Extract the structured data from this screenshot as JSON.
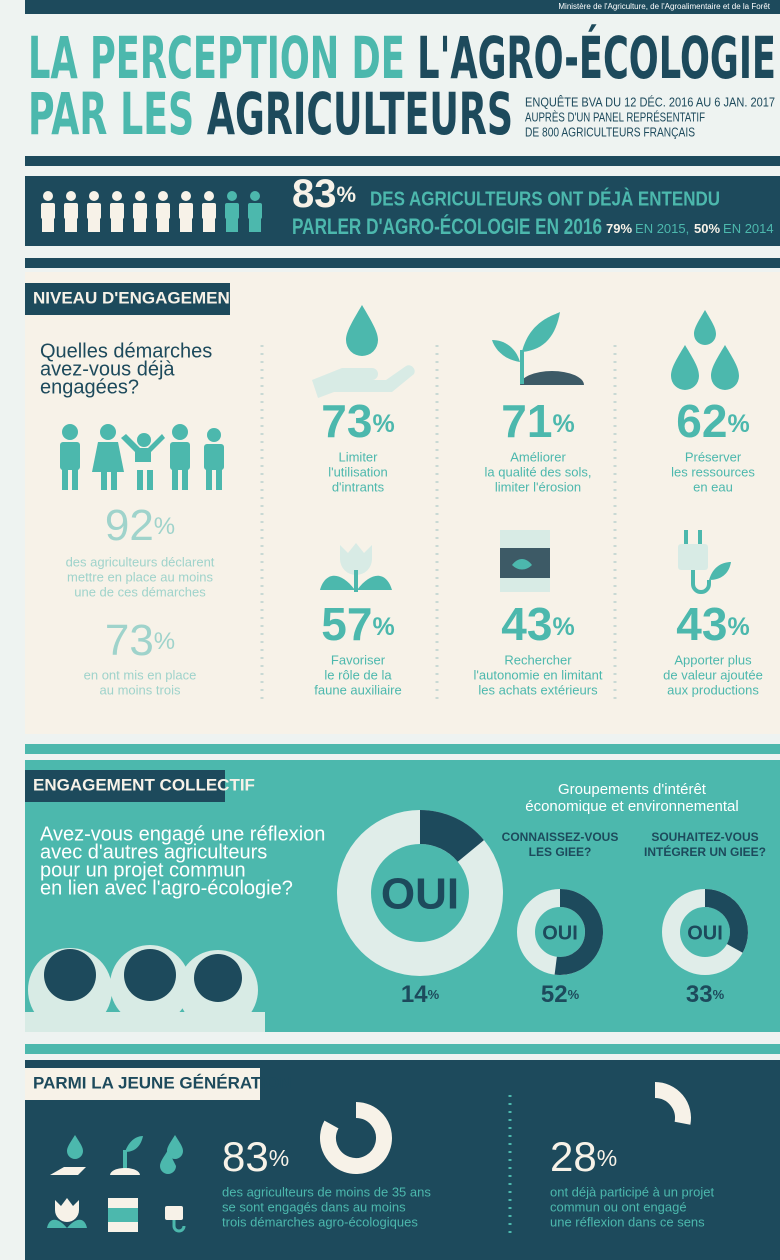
{
  "unit": "%",
  "header": {
    "source": "Ministère de l'Agriculture, de l'Agroalimentaire et de la Forêt",
    "title_line1": [
      "LA PERCEPTION DE ",
      "L'AGRO-ÉCOLOGIE"
    ],
    "title_line2": [
      "PAR LES ",
      "AGRICULTEURS"
    ],
    "survey": [
      "ENQUÊTE BVA DU 12 DÉC. 2016 AU 6 JAN. 2017",
      "AUPRÈS D'UN PANEL REPRÉSENTATIF",
      "DE 800 AGRICULTEURS FRANÇAIS"
    ]
  },
  "awareness": {
    "value": 83,
    "text_line1": "DES AGRICULTEURS ONT DÉJÀ ENTENDU",
    "text_line2": "PARLER D'AGRO-ÉCOLOGIE EN 2016",
    "history": [
      {
        "value": 79,
        "text": "EN 2015,"
      },
      {
        "value": 50,
        "text": "EN 2014"
      }
    ]
  },
  "engagement": {
    "heading": "NIVEAU D'ENGAGEMENT",
    "question": [
      "Quelles démarches",
      "avez-vous déjà",
      "engagées?"
    ],
    "stats": [
      {
        "value": 92,
        "text": [
          "des agriculteurs déclarent",
          "mettre en place au moins",
          "une de ces démarches"
        ]
      },
      {
        "value": 73,
        "text": [
          "en ont mis en place",
          "au moins trois"
        ]
      }
    ],
    "actions": [
      {
        "value": 73,
        "label": [
          "Limiter",
          "l'utilisation",
          "d'intrants"
        ]
      },
      {
        "value": 71,
        "label": [
          "Améliorer",
          "la qualité des sols,",
          "limiter l'érosion"
        ]
      },
      {
        "value": 62,
        "label": [
          "Préserver",
          "les ressources",
          "en eau"
        ]
      },
      {
        "value": 57,
        "label": [
          "Favoriser",
          "le rôle de la",
          "faune auxiliaire"
        ]
      },
      {
        "value": 43,
        "label": [
          "Rechercher",
          "l'autonomie en limitant",
          "les achats extérieurs"
        ]
      },
      {
        "value": 43,
        "label": [
          "Apporter plus",
          "de valeur ajoutée",
          "aux productions"
        ]
      }
    ]
  },
  "collective": {
    "heading": "ENGAGEMENT COLLECTIF",
    "question": [
      "Avez-vous engagé une réflexion",
      "avec d'autres agriculteurs",
      "pour un projet commun",
      "en lien avec l'agro-écologie?"
    ],
    "answer": "OUI",
    "value": 14,
    "giee_title": [
      "Groupements d'intérêt",
      "économique et environnemental"
    ],
    "giee": [
      {
        "question": [
          "CONNAISSEZ-VOUS",
          "LES GIEE?"
        ],
        "value": 52
      },
      {
        "question": [
          "SOUHAITEZ-VOUS",
          "INTÉGRER UN GIEE?"
        ],
        "value": 33
      }
    ]
  },
  "young": {
    "heading": "PARMI LA JEUNE GÉNÉRATION",
    "stats": [
      {
        "value": 83,
        "text": [
          "des agriculteurs de moins de 35 ans",
          "se sont engagés dans au moins",
          "trois démarches agro-écologiques"
        ]
      },
      {
        "value": 28,
        "text": [
          "ont déjà participé à un projet",
          "commun ou ont engagé",
          "une réflexion dans ce sens"
        ]
      }
    ]
  }
}
